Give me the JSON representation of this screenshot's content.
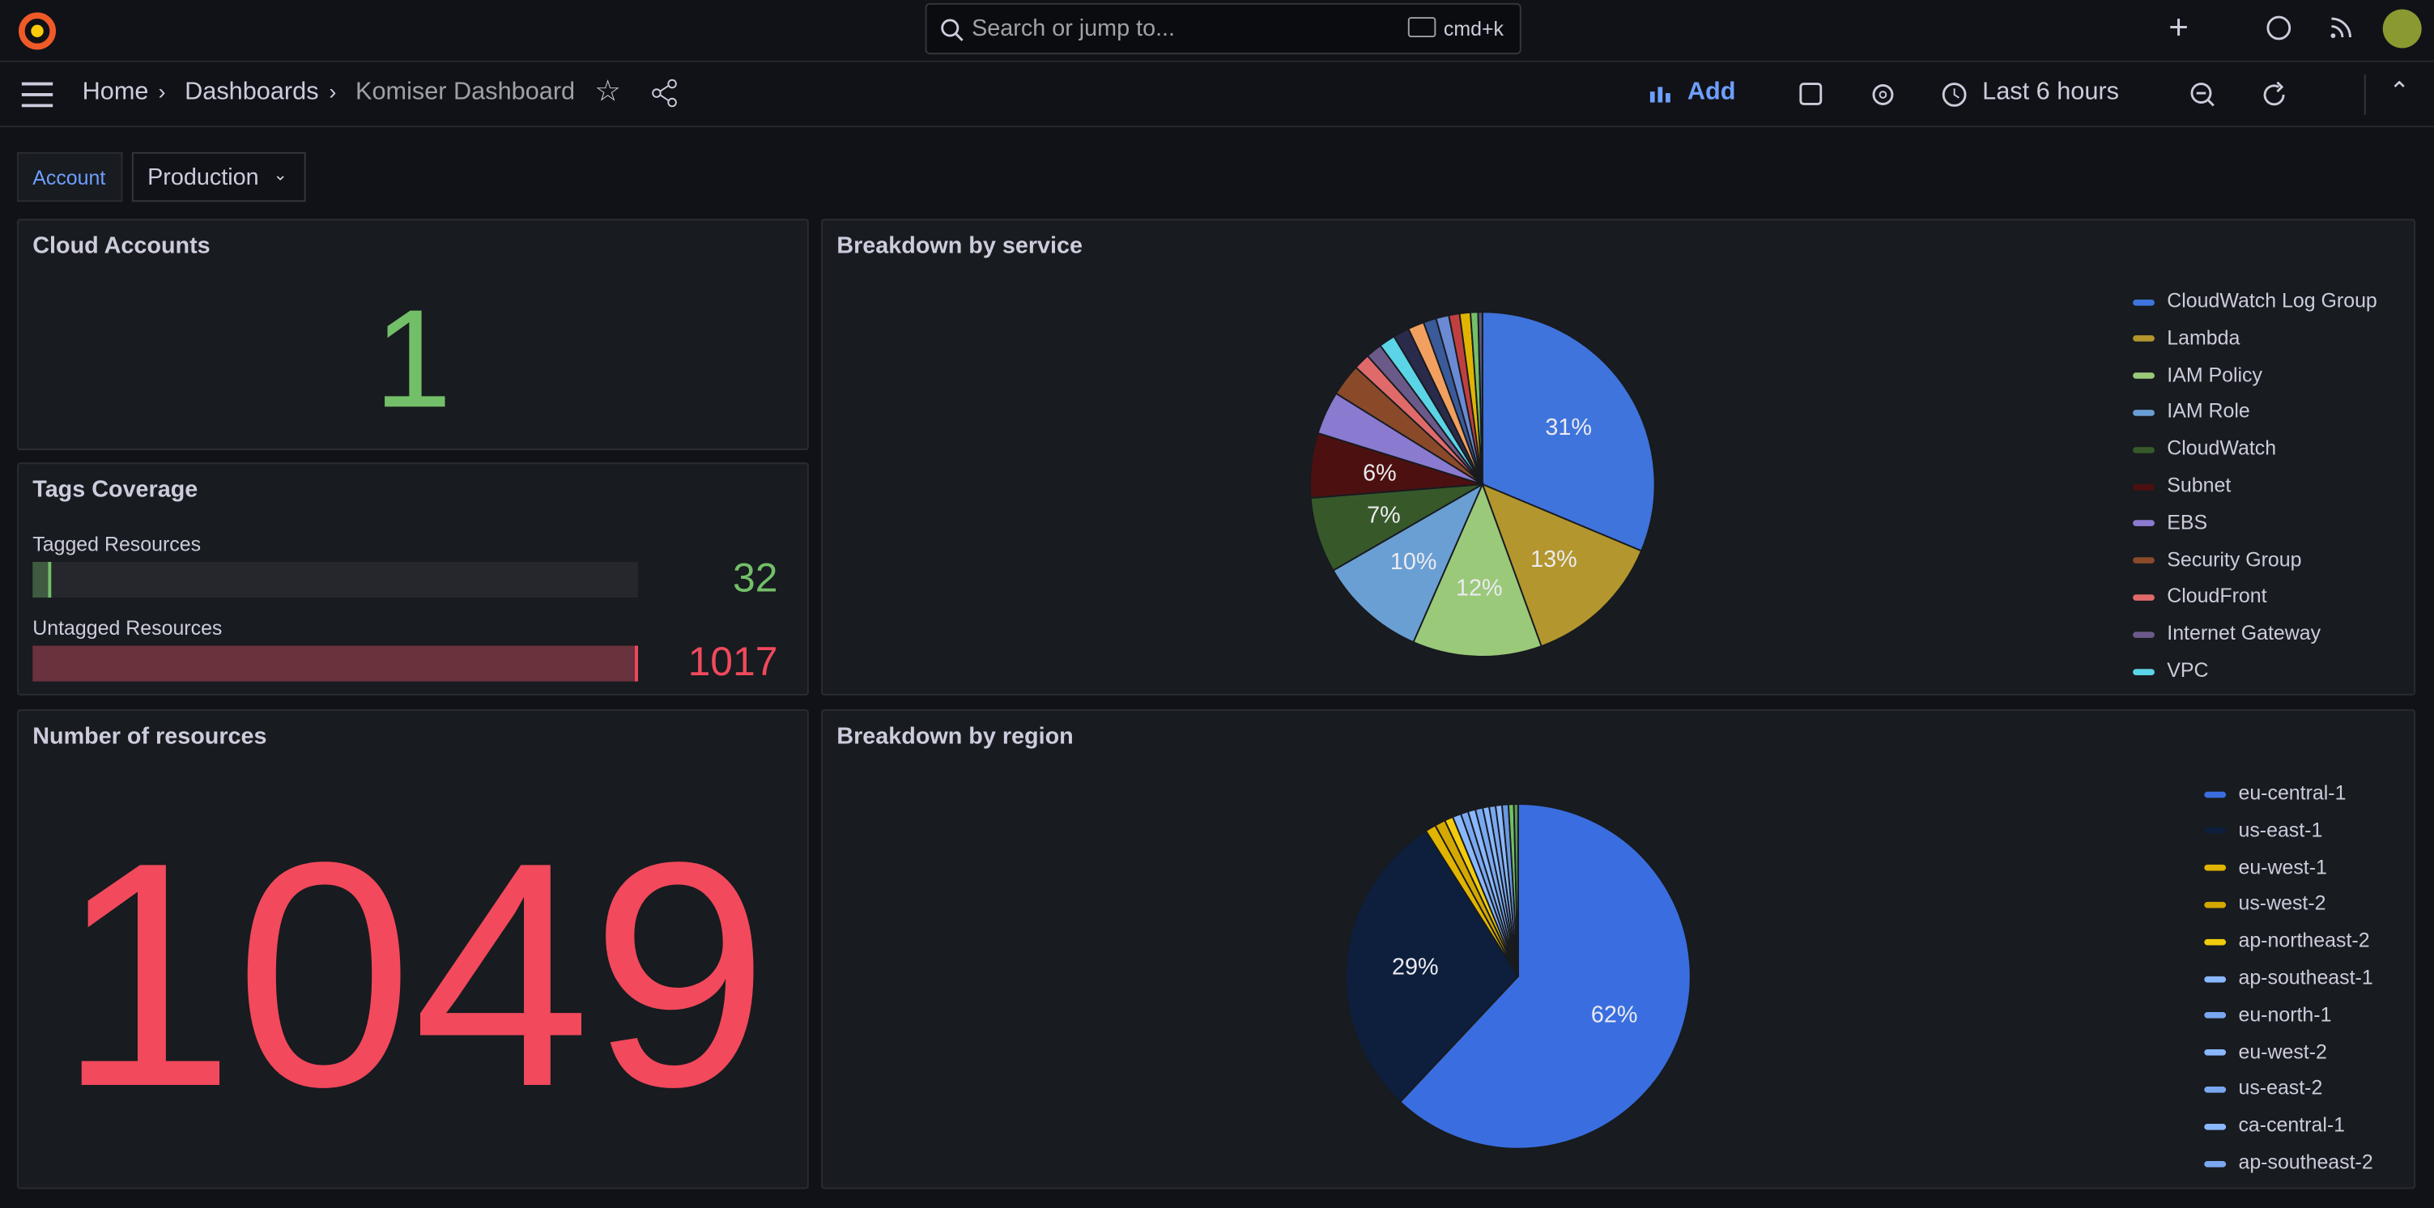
{
  "topbar": {
    "search": "Search or jump to...",
    "shortcut": "cmd+k"
  },
  "navbar": {
    "breadcrumbs": [
      "Home",
      "Dashboards",
      "Komiser Dashboard"
    ],
    "add": "Add",
    "time_range": "Last 6 hours"
  },
  "variables": {
    "label": "Account",
    "value": "Production"
  },
  "panels": {
    "cloud_accounts": {
      "title": "Cloud Accounts",
      "value": 1
    },
    "tags_coverage": {
      "title": "Tags Coverage",
      "bars": [
        {
          "name": "Tagged Resources",
          "value": 32,
          "color": "#73bf69"
        },
        {
          "name": "Untagged Resources",
          "value": 1017,
          "color": "#f2495c"
        }
      ]
    },
    "number_of_resources": {
      "title": "Number of resources",
      "value": 1049
    }
  },
  "chart_data": [
    {
      "type": "pie",
      "title": "Breakdown by service",
      "categories": [
        "CloudWatch Log Group",
        "Lambda",
        "IAM Policy",
        "IAM Role",
        "CloudWatch",
        "Subnet",
        "EBS",
        "Security Group",
        "CloudFront",
        "Internet Gateway",
        "VPC",
        null,
        null,
        null,
        null,
        null,
        null,
        null,
        null
      ],
      "values": [
        31,
        13,
        12,
        10,
        7,
        6,
        4,
        3,
        1.5,
        1.5,
        1.5,
        1.5,
        1.5,
        1.2,
        1.2,
        1,
        1,
        0.7,
        0.4
      ],
      "value_labels": [
        "31%",
        "13%",
        "12%",
        "10%",
        "7%",
        "6%",
        null,
        null,
        null,
        null,
        null,
        null,
        null,
        null,
        null,
        null,
        null,
        null,
        null
      ],
      "colors": [
        "#3f74dc",
        "#b3962e",
        "#9ac97a",
        "#6a9fd4",
        "#37592a",
        "#4d1010",
        "#8a7ad0",
        "#8a4a2a",
        "#e06a6a",
        "#6a5a8a",
        "#5ad4e6",
        "#2a2a4a",
        "#f2a060",
        "#3a5a9a",
        "#6a8ad4",
        "#c04040",
        "#e0b400",
        "#73bf69",
        "#5a5a7a"
      ]
    },
    {
      "type": "pie",
      "title": "Breakdown by region",
      "categories": [
        "eu-central-1",
        "us-east-1",
        "eu-west-1",
        "us-west-2",
        "ap-northeast-2",
        "ap-southeast-1",
        "eu-north-1",
        "eu-west-2",
        "us-east-2",
        "ca-central-1",
        "ap-southeast-2",
        null,
        null,
        null,
        null
      ],
      "values": [
        62,
        29,
        1,
        1,
        0.8,
        0.8,
        0.7,
        0.7,
        0.7,
        0.6,
        0.6,
        0.6,
        0.6,
        0.5,
        0.4
      ],
      "value_labels": [
        "62%",
        "29%",
        null,
        null,
        null,
        null,
        null,
        null,
        null,
        null,
        null,
        null,
        null,
        null,
        null
      ],
      "colors": [
        "#3a6ee0",
        "#0d1f3c",
        "#e0b400",
        "#d4a800",
        "#f2cc0c",
        "#8ab8ff",
        "#7aa8f0",
        "#8ab8ff",
        "#7aa8f0",
        "#8ab8ff",
        "#7aa8f0",
        "#8ab8ff",
        "#6a98e0",
        "#73bf69",
        "#5a9a50"
      ]
    }
  ]
}
